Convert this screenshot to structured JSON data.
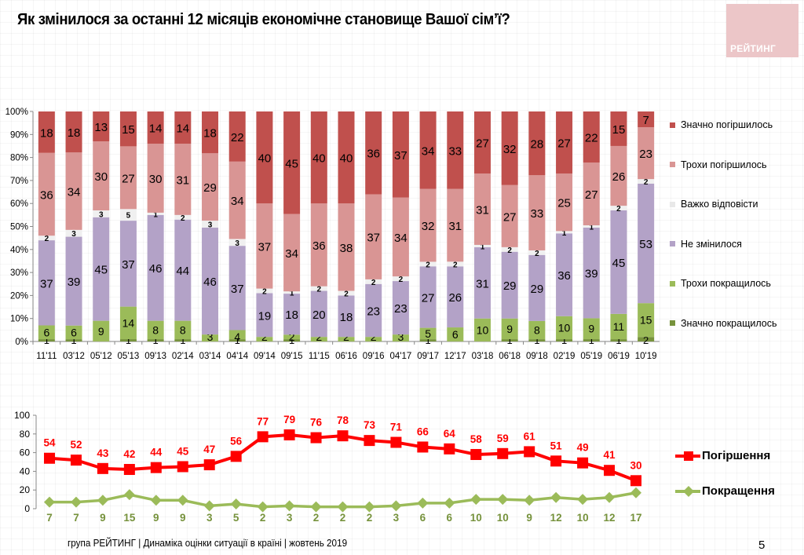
{
  "title": "Як змінилося за останні 12 місяців економічне становище Вашої сім’ї?",
  "logo_text": "РЕЙТИНГ",
  "footer": "група РЕЙТИНГ |  Динаміка оцінки ситуації в країні  |  жовтень  2019",
  "page_number": "5",
  "chart_data": [
    {
      "type": "bar",
      "stacked": true,
      "percent": true,
      "categories": [
        "11'11",
        "03'12",
        "05'12",
        "05'13",
        "09'13",
        "02'14",
        "03'14",
        "04'14",
        "09'14",
        "09'15",
        "11'15",
        "06'16",
        "09'16",
        "04'17",
        "09'17",
        "12'17",
        "03'18",
        "06'18",
        "09'18",
        "02'19",
        "05'19",
        "06'19",
        "10'19"
      ],
      "ylim": [
        0,
        100
      ],
      "yticks": [
        "0%",
        "10%",
        "20%",
        "30%",
        "40%",
        "50%",
        "60%",
        "70%",
        "80%",
        "90%",
        "100%"
      ],
      "grid": true,
      "legend_position": "right",
      "series": [
        {
          "name": "Значно покращилось",
          "color": "#77933c",
          "values": [
            1,
            1,
            0,
            1,
            1,
            1,
            0,
            1,
            0,
            1,
            0,
            0,
            0,
            0,
            1,
            0,
            0,
            1,
            1,
            1,
            1,
            1,
            2
          ]
        },
        {
          "name": "Трохи покращилось",
          "color": "#9bbb59",
          "values": [
            6,
            6,
            9,
            14,
            8,
            8,
            3,
            4,
            2,
            2,
            2,
            2,
            2,
            3,
            5,
            6,
            10,
            9,
            8,
            10,
            9,
            11,
            15
          ]
        },
        {
          "name": "Не змінилося",
          "color": "#b3a2c7",
          "values": [
            37,
            39,
            45,
            37,
            46,
            44,
            46,
            37,
            19,
            18,
            20,
            18,
            23,
            23,
            27,
            26,
            31,
            29,
            29,
            36,
            39,
            45,
            53
          ]
        },
        {
          "name": "Важко відповісти",
          "color": "#f0f0f0",
          "values": [
            2,
            3,
            3,
            5,
            1,
            2,
            3,
            3,
            2,
            1,
            2,
            2,
            2,
            2,
            2,
            2,
            1,
            2,
            2,
            1,
            1,
            2,
            2
          ]
        },
        {
          "name": "Трохи погіршилось",
          "color": "#d99594",
          "values": [
            36,
            34,
            30,
            27,
            30,
            31,
            29,
            34,
            37,
            34,
            36,
            38,
            37,
            34,
            32,
            31,
            31,
            27,
            33,
            25,
            27,
            26,
            23
          ]
        },
        {
          "name": "Значно погіршилось",
          "color": "#c0504d",
          "values": [
            18,
            18,
            13,
            15,
            14,
            14,
            18,
            22,
            40,
            45,
            40,
            40,
            36,
            37,
            34,
            33,
            27,
            32,
            28,
            27,
            22,
            15,
            7
          ]
        }
      ],
      "labels_shown": {
        "Значно покращилось": [
          1,
          1,
          null,
          1,
          1,
          1,
          null,
          1,
          null,
          1,
          null,
          null,
          null,
          null,
          1,
          null,
          null,
          1,
          1,
          1,
          1,
          1,
          2
        ],
        "Трохи покращилось": [
          6,
          6,
          9,
          14,
          8,
          8,
          3,
          4,
          2,
          2,
          2,
          2,
          2,
          3,
          5,
          6,
          10,
          9,
          8,
          10,
          9,
          11,
          15
        ]
      }
    },
    {
      "type": "line",
      "categories": [
        "11'11",
        "03'12",
        "05'12",
        "05'13",
        "09'13",
        "02'14",
        "03'14",
        "04'14",
        "09'14",
        "09'15",
        "11'15",
        "06'16",
        "09'16",
        "04'17",
        "09'17",
        "12'17",
        "03'18",
        "06'18",
        "09'18",
        "02'19",
        "05'19",
        "06'19",
        "10'19"
      ],
      "ylim": [
        0,
        100
      ],
      "yticks": [
        "0",
        "20",
        "40",
        "60",
        "80",
        "100"
      ],
      "legend_position": "right",
      "series": [
        {
          "name": "Погіршення",
          "color": "#ff0000",
          "marker": "square",
          "values": [
            54,
            52,
            43,
            42,
            44,
            45,
            47,
            56,
            77,
            79,
            76,
            78,
            73,
            71,
            66,
            64,
            58,
            59,
            61,
            51,
            49,
            41,
            30
          ]
        },
        {
          "name": "Покращення",
          "color": "#9bbb59",
          "marker": "diamond",
          "values": [
            7,
            7,
            9,
            15,
            9,
            9,
            3,
            5,
            2,
            3,
            2,
            2,
            2,
            3,
            6,
            6,
            10,
            10,
            9,
            12,
            10,
            12,
            17
          ]
        }
      ]
    }
  ]
}
